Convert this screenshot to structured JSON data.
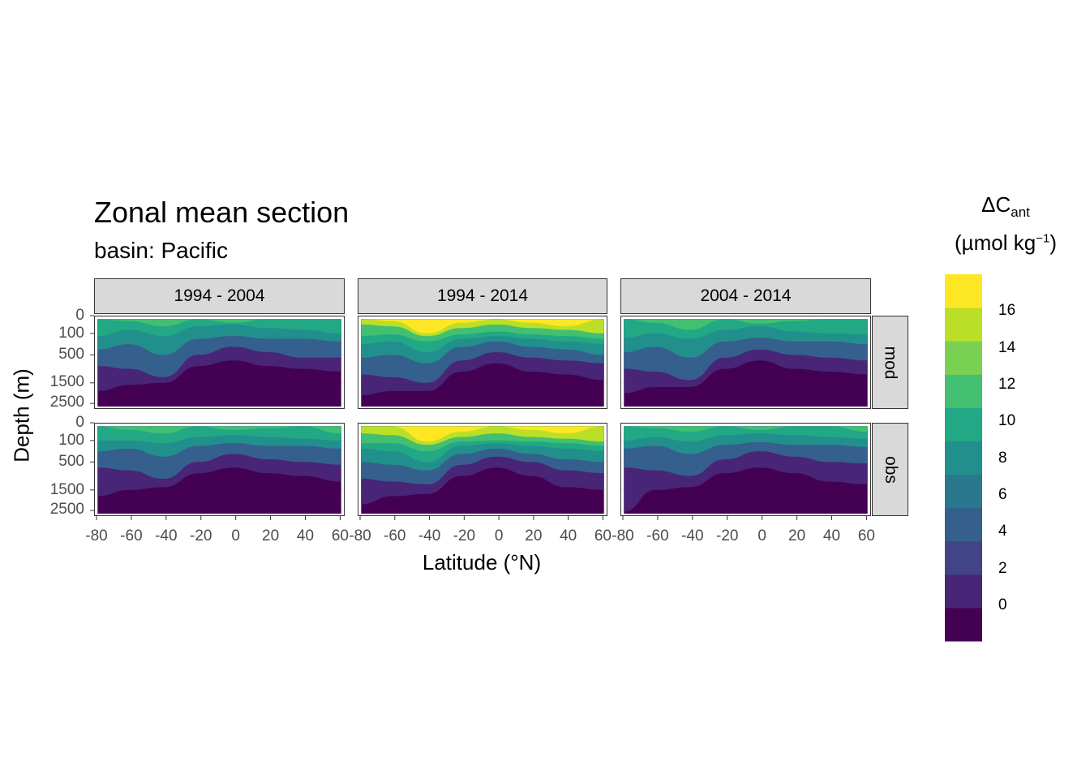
{
  "chart_data": {
    "type": "heatmap",
    "title": "Zonal mean section",
    "subtitle": "basin: Pacific",
    "xlabel": "Latitude (°N)",
    "ylabel": "Depth (m)",
    "x_ticks": [
      "-80",
      "-60",
      "-40",
      "-20",
      "0",
      "20",
      "40",
      "60"
    ],
    "y_ticks": [
      "0",
      "100",
      "500",
      "1500",
      "2500"
    ],
    "xlim": [
      -80,
      64
    ],
    "depth_range": [
      0,
      3000
    ],
    "column_facets": [
      "1994 - 2004",
      "1994 - 2014",
      "2004 - 2014"
    ],
    "row_facets": [
      "mod",
      "obs"
    ],
    "legend": {
      "title": "ΔC",
      "title_subscript": "ant",
      "unit": "(µmol kg",
      "unit_superscript": "−1",
      "unit_close": ")",
      "labels": [
        "16",
        "14",
        "12",
        "10",
        "8",
        "6",
        "4",
        "2",
        "0"
      ],
      "colors": [
        "#440154",
        "#482576",
        "#414487",
        "#35608d",
        "#2a788e",
        "#21908c",
        "#22a884",
        "#43bf71",
        "#7ad151",
        "#bbdf27",
        "#fde725"
      ],
      "placement": "right"
    },
    "panels": [
      {
        "period": "1994 - 2004",
        "source": "mod",
        "lat": [
          -78,
          -60,
          -40,
          -20,
          0,
          20,
          40,
          62
        ],
        "depth_of_level_m": {
          "2": [
            1900,
            1600,
            1500,
            900,
            700,
            900,
            1000,
            1100
          ],
          "4": [
            900,
            1000,
            1300,
            500,
            350,
            450,
            600,
            600
          ],
          "6": [
            400,
            300,
            500,
            200,
            150,
            200,
            200,
            250
          ],
          "8": [
            150,
            80,
            150,
            60,
            50,
            70,
            80,
            100
          ],
          "10": [
            0,
            30,
            60,
            0,
            40,
            20,
            0,
            0
          ]
        }
      },
      {
        "period": "1994 - 2014",
        "source": "mod",
        "lat": [
          -78,
          -60,
          -40,
          -20,
          0,
          20,
          40,
          62
        ],
        "depth_of_level_m": {
          "2": [
            2100,
            1900,
            1900,
            1100,
            800,
            1100,
            1200,
            1400
          ],
          "4": [
            1200,
            1300,
            1500,
            700,
            450,
            600,
            700,
            800
          ],
          "6": [
            600,
            500,
            800,
            350,
            250,
            350,
            400,
            500
          ],
          "8": [
            300,
            250,
            450,
            200,
            150,
            200,
            250,
            300
          ],
          "10": [
            150,
            120,
            250,
            120,
            90,
            120,
            150,
            200
          ],
          "14": [
            50,
            60,
            150,
            70,
            50,
            70,
            80,
            100
          ],
          "16": [
            0,
            30,
            100,
            40,
            0,
            40,
            60,
            0
          ]
        }
      },
      {
        "period": "2004 - 2014",
        "source": "mod",
        "lat": [
          -78,
          -60,
          -40,
          -20,
          0,
          20,
          40,
          62
        ],
        "depth_of_level_m": {
          "2": [
            2000,
            1700,
            1700,
            1000,
            700,
            1000,
            1100,
            1200
          ],
          "4": [
            1000,
            1100,
            1400,
            600,
            400,
            500,
            600,
            700
          ],
          "6": [
            450,
            350,
            600,
            250,
            180,
            250,
            250,
            300
          ],
          "8": [
            180,
            100,
            200,
            80,
            60,
            90,
            100,
            120
          ],
          "10": [
            0,
            40,
            80,
            0,
            45,
            30,
            0,
            0
          ]
        }
      },
      {
        "period": "1994 - 2004",
        "source": "obs",
        "lat": [
          -78,
          -60,
          -40,
          -20,
          0,
          20,
          40,
          62
        ],
        "depth_of_level_m": {
          "2": [
            1800,
            1500,
            1400,
            900,
            700,
            900,
            1000,
            1200
          ],
          "4": [
            700,
            800,
            1100,
            500,
            350,
            450,
            500,
            600
          ],
          "6": [
            300,
            250,
            400,
            200,
            150,
            200,
            200,
            250
          ],
          "8": [
            100,
            100,
            150,
            80,
            70,
            80,
            90,
            100
          ],
          "10": [
            0,
            40,
            60,
            0,
            40,
            30,
            0,
            60
          ]
        }
      },
      {
        "period": "1994 - 2014",
        "source": "obs",
        "lat": [
          -78,
          -60,
          -40,
          -20,
          0,
          20,
          40,
          62
        ],
        "depth_of_level_m": {
          "2": [
            2200,
            1800,
            1700,
            1000,
            700,
            1000,
            1400,
            1500
          ],
          "4": [
            1100,
            1200,
            1300,
            600,
            400,
            500,
            800,
            900
          ],
          "6": [
            500,
            600,
            800,
            350,
            250,
            350,
            450,
            500
          ],
          "8": [
            250,
            300,
            500,
            200,
            150,
            200,
            250,
            300
          ],
          "10": [
            150,
            150,
            300,
            120,
            100,
            120,
            150,
            200
          ],
          "14": [
            60,
            70,
            180,
            80,
            60,
            80,
            90,
            120
          ],
          "16": [
            0,
            20,
            120,
            50,
            0,
            40,
            60,
            0
          ]
        }
      },
      {
        "period": "2004 - 2014",
        "source": "obs",
        "lat": [
          -78,
          -60,
          -40,
          -20,
          0,
          20,
          40,
          62
        ],
        "depth_of_level_m": {
          "2": [
            2600,
            1500,
            1400,
            900,
            700,
            900,
            1200,
            1300
          ],
          "4": [
            700,
            800,
            1000,
            450,
            300,
            400,
            500,
            550
          ],
          "6": [
            250,
            200,
            350,
            180,
            130,
            180,
            180,
            220
          ],
          "8": [
            100,
            80,
            120,
            70,
            60,
            70,
            80,
            90
          ],
          "10": [
            0,
            30,
            50,
            0,
            40,
            20,
            0,
            50
          ]
        }
      }
    ]
  }
}
